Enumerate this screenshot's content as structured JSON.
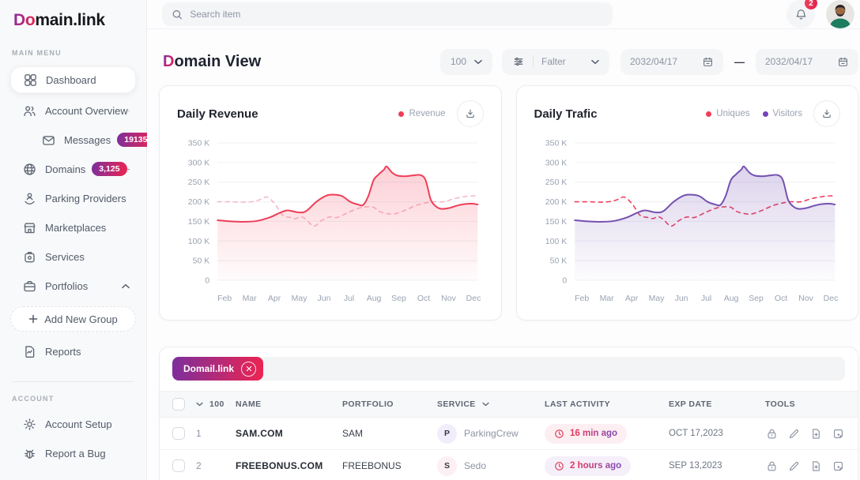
{
  "brand": {
    "logo_accent": "Do",
    "logo_rest": "main.link"
  },
  "sidebar": {
    "main_menu_label": "MAIN MENU",
    "account_label": "ACCOUNT",
    "dashboard": {
      "label": "Dashboard"
    },
    "account_overview": {
      "label": "Account Overview"
    },
    "messages": {
      "label": "Messages",
      "badge": "19135"
    },
    "domains": {
      "label": "Domains",
      "badge": "3,125"
    },
    "parking": {
      "label": "Parking Providers"
    },
    "marketplaces": {
      "label": "Marketplaces"
    },
    "services": {
      "label": "Services"
    },
    "portfolios": {
      "label": "Portfolios"
    },
    "add_group": {
      "label": "Add New Group"
    },
    "reports": {
      "label": "Reports"
    },
    "account_setup": {
      "label": "Account Setup"
    },
    "report_bug": {
      "label": "Report a Bug"
    }
  },
  "topbar": {
    "search_placeholder": "Search item",
    "notification_count": "2"
  },
  "toolbar": {
    "title_accent": "D",
    "title_rest": "omain View",
    "page_size": "100",
    "filter_label": "Falter",
    "date_from": "2032/04/17",
    "date_sep": "—",
    "date_to": "2032/04/17"
  },
  "chart_data": [
    {
      "type": "line",
      "title": "Daily Revenue",
      "legend": [
        {
          "label": "Revenue",
          "color": "#ef3e58"
        }
      ],
      "x_labels": [
        "Feb",
        "Mar",
        "Apr",
        "May",
        "Jun",
        "Jul",
        "Aug",
        "Sep",
        "Oct",
        "Nov",
        "Dec"
      ],
      "y_ticks": [
        "350 K",
        "300 K",
        "250 K",
        "200 K",
        "150 K",
        "100 K",
        "50 K",
        "0"
      ],
      "ylim": [
        0,
        350000
      ],
      "unit": "thousands",
      "grid": true,
      "fill_color": "#f4435c",
      "series": [
        {
          "name": "unlabeled-dashed",
          "style": "dashed",
          "color": "#f6b9c6",
          "fill": false,
          "points": [
            [
              0,
              200
            ],
            [
              0.05,
              200
            ],
            [
              0.1,
              199
            ],
            [
              0.14,
              201
            ],
            [
              0.17,
              207
            ],
            [
              0.19,
              212
            ],
            [
              0.22,
              195
            ],
            [
              0.25,
              166
            ],
            [
              0.28,
              160
            ],
            [
              0.3,
              157
            ],
            [
              0.32,
              162
            ],
            [
              0.34,
              155
            ],
            [
              0.37,
              138
            ],
            [
              0.4,
              152
            ],
            [
              0.43,
              161
            ],
            [
              0.46,
              160
            ],
            [
              0.5,
              172
            ],
            [
              0.54,
              183
            ],
            [
              0.57,
              187
            ],
            [
              0.6,
              186
            ],
            [
              0.62,
              176
            ],
            [
              0.65,
              170
            ],
            [
              0.68,
              169
            ],
            [
              0.72,
              178
            ],
            [
              0.76,
              190
            ],
            [
              0.8,
              197
            ],
            [
              0.83,
              200
            ],
            [
              0.87,
              200
            ],
            [
              0.91,
              208
            ],
            [
              0.95,
              213
            ],
            [
              0.98,
              215
            ],
            [
              1,
              215
            ]
          ]
        },
        {
          "name": "Revenue",
          "style": "solid",
          "color": "#ef3e58",
          "fill": true,
          "points": [
            [
              0,
              153
            ],
            [
              0.05,
              150
            ],
            [
              0.1,
              149
            ],
            [
              0.15,
              151
            ],
            [
              0.2,
              160
            ],
            [
              0.24,
              172
            ],
            [
              0.27,
              178
            ],
            [
              0.31,
              173
            ],
            [
              0.34,
              176
            ],
            [
              0.38,
              200
            ],
            [
              0.42,
              216
            ],
            [
              0.45,
              218
            ],
            [
              0.48,
              214
            ],
            [
              0.51,
              200
            ],
            [
              0.54,
              193
            ],
            [
              0.56,
              192
            ],
            [
              0.58,
              215
            ],
            [
              0.6,
              255
            ],
            [
              0.62,
              270
            ],
            [
              0.64,
              282
            ],
            [
              0.65,
              290
            ],
            [
              0.67,
              275
            ],
            [
              0.69,
              267
            ],
            [
              0.72,
              265
            ],
            [
              0.75,
              267
            ],
            [
              0.78,
              268
            ],
            [
              0.8,
              255
            ],
            [
              0.82,
              205
            ],
            [
              0.84,
              188
            ],
            [
              0.86,
              182
            ],
            [
              0.89,
              184
            ],
            [
              0.92,
              190
            ],
            [
              0.95,
              194
            ],
            [
              0.98,
              195
            ],
            [
              1,
              193
            ]
          ]
        }
      ]
    },
    {
      "type": "line",
      "title": "Daily Trafic",
      "legend": [
        {
          "label": "Uniques",
          "color": "#ef3e58"
        },
        {
          "label": "Visitors",
          "color": "#7443b8"
        }
      ],
      "x_labels": [
        "Feb",
        "Mar",
        "Apr",
        "May",
        "Jun",
        "Jul",
        "Aug",
        "Sep",
        "Oct",
        "Nov",
        "Dec"
      ],
      "y_ticks": [
        "350 K",
        "300 K",
        "250 K",
        "200 K",
        "150 K",
        "100 K",
        "50 K",
        "0"
      ],
      "ylim": [
        0,
        350000
      ],
      "unit": "thousands",
      "grid": true,
      "fill_color": "#7550b2",
      "series": [
        {
          "name": "Uniques",
          "style": "dashed",
          "color": "#f0415f",
          "fill": false,
          "points": [
            [
              0,
              200
            ],
            [
              0.05,
              200
            ],
            [
              0.1,
              199
            ],
            [
              0.14,
              201
            ],
            [
              0.17,
              207
            ],
            [
              0.19,
              212
            ],
            [
              0.22,
              195
            ],
            [
              0.25,
              166
            ],
            [
              0.28,
              160
            ],
            [
              0.3,
              157
            ],
            [
              0.32,
              162
            ],
            [
              0.34,
              155
            ],
            [
              0.37,
              138
            ],
            [
              0.4,
              152
            ],
            [
              0.43,
              161
            ],
            [
              0.46,
              160
            ],
            [
              0.5,
              172
            ],
            [
              0.54,
              183
            ],
            [
              0.57,
              187
            ],
            [
              0.6,
              186
            ],
            [
              0.62,
              176
            ],
            [
              0.65,
              170
            ],
            [
              0.68,
              169
            ],
            [
              0.72,
              178
            ],
            [
              0.76,
              190
            ],
            [
              0.8,
              197
            ],
            [
              0.83,
              200
            ],
            [
              0.87,
              200
            ],
            [
              0.91,
              208
            ],
            [
              0.95,
              213
            ],
            [
              0.98,
              215
            ],
            [
              1,
              215
            ]
          ]
        },
        {
          "name": "Visitors",
          "style": "solid",
          "color": "#7451b0",
          "fill": true,
          "points": [
            [
              0,
              153
            ],
            [
              0.05,
              150
            ],
            [
              0.1,
              149
            ],
            [
              0.15,
              151
            ],
            [
              0.2,
              160
            ],
            [
              0.24,
              172
            ],
            [
              0.27,
              178
            ],
            [
              0.31,
              173
            ],
            [
              0.34,
              176
            ],
            [
              0.38,
              200
            ],
            [
              0.42,
              216
            ],
            [
              0.45,
              218
            ],
            [
              0.48,
              214
            ],
            [
              0.51,
              200
            ],
            [
              0.54,
              193
            ],
            [
              0.56,
              192
            ],
            [
              0.58,
              215
            ],
            [
              0.6,
              255
            ],
            [
              0.62,
              270
            ],
            [
              0.64,
              282
            ],
            [
              0.65,
              290
            ],
            [
              0.67,
              275
            ],
            [
              0.69,
              267
            ],
            [
              0.72,
              265
            ],
            [
              0.75,
              267
            ],
            [
              0.78,
              268
            ],
            [
              0.8,
              255
            ],
            [
              0.82,
              205
            ],
            [
              0.84,
              188
            ],
            [
              0.86,
              182
            ],
            [
              0.89,
              184
            ],
            [
              0.92,
              190
            ],
            [
              0.95,
              194
            ],
            [
              0.98,
              195
            ],
            [
              1,
              193
            ]
          ]
        }
      ]
    }
  ],
  "table": {
    "chip_label": "Domail.link",
    "header": {
      "count": "100",
      "name": "NAME",
      "portfolio": "PORTFOLIO",
      "service": "SERVICE",
      "last_activity": "LAST ACTIVITY",
      "exp_date": "EXP DATE",
      "tools": "TOOLS"
    },
    "rows": [
      {
        "num": "1",
        "name": "SAM.COM",
        "portfolio": "SAM",
        "service_initial": "P",
        "service_name": "ParkingCrew",
        "last_activity": "16 min ago",
        "exp_date": "OCT 17,2023"
      },
      {
        "num": "2",
        "name": "FREEBONUS.COM",
        "portfolio": "FREEBONUS",
        "service_initial": "S",
        "service_name": "Sedo",
        "last_activity": "2 hours ago",
        "exp_date": "SEP 13,2023"
      }
    ]
  },
  "colors": {
    "accent_gradient_start": "#7c2f9c",
    "accent_gradient_end": "#ed2451",
    "revenue_red": "#ef3e58",
    "visitors_purple": "#7451b0",
    "sidebar_bg": "#f8f9fa"
  }
}
